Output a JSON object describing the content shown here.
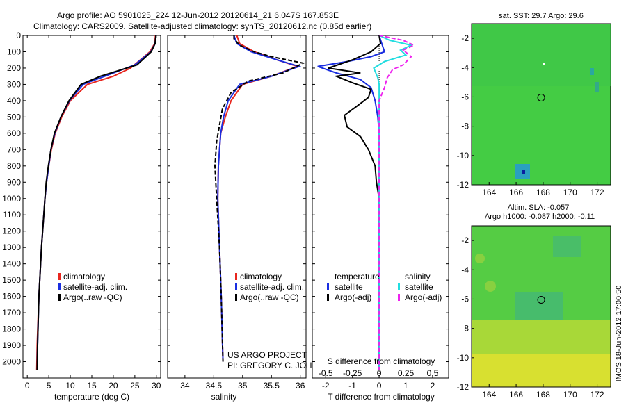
{
  "header": {
    "line1": "Argo profile: AO 5901025_224 12-Jun-2012 20120614_21 6.047S 167.853E",
    "line2": "Climatology: CARS2009. Satellite-adjusted climatology: synTS_20120612.nc (0.85d earlier)"
  },
  "colors": {
    "climatology": "#e8261e",
    "satellite": "#1a2ee0",
    "argo": "#000000",
    "salinity_sat": "#22dde0",
    "salinity_argo": "#ee22ee",
    "map_bg": "#44cc44"
  },
  "chart_data": [
    {
      "id": "temperature",
      "type": "line",
      "xlabel": "temperature (deg C)",
      "ylabel": "",
      "xlim": [
        -1,
        31
      ],
      "ylim": [
        2100,
        0
      ],
      "xticks": [
        0,
        5,
        10,
        15,
        20,
        25,
        30
      ],
      "yticks": [
        0,
        100,
        200,
        300,
        400,
        500,
        600,
        700,
        800,
        900,
        1000,
        1100,
        1200,
        1300,
        1400,
        1500,
        1600,
        1700,
        1800,
        1900,
        2000
      ],
      "legend": [
        "climatology",
        "satellite-adj. clim.",
        "Argo(..raw -QC)"
      ],
      "series": [
        {
          "name": "climatology",
          "points": [
            [
              29.8,
              0
            ],
            [
              29.6,
              50
            ],
            [
              28.5,
              100
            ],
            [
              24,
              200
            ],
            [
              20,
              250
            ],
            [
              14,
              300
            ],
            [
              10,
              400
            ],
            [
              8,
              500
            ],
            [
              6.5,
              600
            ],
            [
              5.6,
              700
            ],
            [
              5,
              800
            ],
            [
              4.5,
              900
            ],
            [
              4.1,
              1000
            ],
            [
              3.3,
              1300
            ],
            [
              2.7,
              1600
            ],
            [
              2.3,
              1900
            ],
            [
              2.2,
              2050
            ]
          ]
        },
        {
          "name": "satellite-adj. clim.",
          "points": [
            [
              29.9,
              0
            ],
            [
              29.7,
              50
            ],
            [
              28.7,
              100
            ],
            [
              25,
              180
            ],
            [
              18,
              250
            ],
            [
              13,
              300
            ],
            [
              9.8,
              400
            ],
            [
              7.8,
              500
            ],
            [
              6.4,
              600
            ],
            [
              5.5,
              700
            ],
            [
              5,
              800
            ],
            [
              4.5,
              900
            ],
            [
              4.1,
              1000
            ],
            [
              3.3,
              1300
            ],
            [
              2.7,
              1600
            ],
            [
              2.4,
              1900
            ],
            [
              2.3,
              2050
            ]
          ]
        },
        {
          "name": "Argo(..raw -QC)",
          "points": [
            [
              29.9,
              0
            ],
            [
              29.7,
              50
            ],
            [
              28.8,
              100
            ],
            [
              25.5,
              180
            ],
            [
              17,
              250
            ],
            [
              12.5,
              300
            ],
            [
              9.7,
              400
            ],
            [
              7.8,
              500
            ],
            [
              6.3,
              600
            ],
            [
              5.5,
              700
            ],
            [
              4.9,
              800
            ],
            [
              4.4,
              900
            ],
            [
              4.1,
              1000
            ],
            [
              3.3,
              1300
            ],
            [
              2.7,
              1600
            ],
            [
              2.4,
              1900
            ],
            [
              2.3,
              2050
            ]
          ]
        }
      ]
    },
    {
      "id": "salinity",
      "type": "line",
      "xlabel": "salinity",
      "ylabel": "",
      "xlim": [
        33.7,
        36.1
      ],
      "ylim": [
        2100,
        0
      ],
      "xticks": [
        34,
        34.5,
        35,
        35.5,
        36
      ],
      "xtick_labels": [
        "34",
        "34.5",
        "35",
        "35.5",
        "36"
      ],
      "legend": [
        "climatology",
        "satellite-adj. clim.",
        "Argo(..raw -QC)"
      ],
      "series": [
        {
          "name": "climatology",
          "points": [
            [
              34.9,
              0
            ],
            [
              34.95,
              50
            ],
            [
              35.2,
              100
            ],
            [
              35.6,
              150
            ],
            [
              35.95,
              190
            ],
            [
              35.5,
              250
            ],
            [
              35.0,
              300
            ],
            [
              34.8,
              400
            ],
            [
              34.7,
              500
            ],
            [
              34.62,
              600
            ],
            [
              34.6,
              700
            ],
            [
              34.58,
              800
            ],
            [
              34.57,
              1000
            ],
            [
              34.6,
              1300
            ],
            [
              34.63,
              1600
            ],
            [
              34.66,
              2000
            ]
          ]
        },
        {
          "name": "satellite-adj. clim.",
          "points": [
            [
              34.85,
              0
            ],
            [
              34.9,
              50
            ],
            [
              35.15,
              100
            ],
            [
              35.6,
              150
            ],
            [
              35.98,
              190
            ],
            [
              35.5,
              250
            ],
            [
              34.95,
              300
            ],
            [
              34.75,
              400
            ],
            [
              34.67,
              500
            ],
            [
              34.62,
              600
            ],
            [
              34.6,
              700
            ],
            [
              34.58,
              800
            ],
            [
              34.57,
              1000
            ],
            [
              34.6,
              1300
            ],
            [
              34.63,
              1600
            ],
            [
              34.66,
              2000
            ]
          ]
        },
        {
          "name": "Argo(..raw -QC)",
          "points": [
            [
              34.85,
              0
            ],
            [
              34.85,
              20
            ],
            [
              34.95,
              60
            ],
            [
              35.2,
              100
            ],
            [
              35.5,
              130
            ],
            [
              36.05,
              170
            ],
            [
              35.7,
              230
            ],
            [
              35.1,
              280
            ],
            [
              34.8,
              350
            ],
            [
              34.65,
              450
            ],
            [
              34.6,
              550
            ],
            [
              34.55,
              650
            ],
            [
              34.52,
              800
            ],
            [
              34.55,
              1000
            ],
            [
              34.6,
              1300
            ],
            [
              34.63,
              1600
            ],
            [
              34.66,
              2000
            ]
          ]
        }
      ]
    },
    {
      "id": "difference",
      "type": "line",
      "xlabel": "T difference from climatology",
      "xlabel_top": "S difference from climatology",
      "xlim": [
        -2.5,
        2.6
      ],
      "ylim": [
        2100,
        0
      ],
      "xticks": [
        -2,
        -1,
        0,
        1,
        2
      ],
      "top_ticks": [
        "-0.5",
        "-0.25",
        "0",
        "0.25",
        "0.5"
      ],
      "legend": [
        "temperature",
        "satellite",
        "Argo(-adj)",
        "salinity",
        "satellite",
        "Argo(-adj)"
      ],
      "series": [
        {
          "name": "T satellite",
          "points": [
            [
              0,
              0
            ],
            [
              0.1,
              50
            ],
            [
              0.2,
              100
            ],
            [
              -0.3,
              130
            ],
            [
              -1.2,
              160
            ],
            [
              -2.3,
              190
            ],
            [
              -1.6,
              230
            ],
            [
              -0.7,
              270
            ],
            [
              -0.3,
              320
            ],
            [
              -0.15,
              400
            ],
            [
              -0.05,
              500
            ],
            [
              0,
              600
            ],
            [
              0,
              800
            ],
            [
              0,
              1000
            ],
            [
              0,
              2050
            ]
          ]
        },
        {
          "name": "T Argo(-adj)",
          "points": [
            [
              0,
              0
            ],
            [
              0.05,
              50
            ],
            [
              -0.3,
              100
            ],
            [
              -1.0,
              150
            ],
            [
              -1.9,
              200
            ],
            [
              -0.7,
              230
            ],
            [
              -1.6,
              250
            ],
            [
              -1.0,
              290
            ],
            [
              -0.3,
              330
            ],
            [
              -0.4,
              380
            ],
            [
              -0.8,
              430
            ],
            [
              -1.3,
              490
            ],
            [
              -1.2,
              560
            ],
            [
              -0.7,
              620
            ],
            [
              -0.4,
              700
            ],
            [
              -0.15,
              800
            ],
            [
              -0.1,
              900
            ],
            [
              0,
              1000
            ],
            [
              0,
              2050
            ]
          ]
        },
        {
          "name": "S satellite",
          "points": [
            [
              0,
              0
            ],
            [
              0.4,
              30
            ],
            [
              1.2,
              60
            ],
            [
              0.8,
              90
            ],
            [
              1.0,
              120
            ],
            [
              0.2,
              160
            ],
            [
              -0.2,
              200
            ],
            [
              -0.05,
              260
            ],
            [
              0,
              300
            ],
            [
              0,
              2050
            ]
          ]
        },
        {
          "name": "S Argo(-adj)",
          "points": [
            [
              0,
              0
            ],
            [
              0.9,
              30
            ],
            [
              1.3,
              60
            ],
            [
              0.9,
              90
            ],
            [
              1.2,
              130
            ],
            [
              0.9,
              180
            ],
            [
              0.5,
              210
            ],
            [
              0.3,
              260
            ],
            [
              0.2,
              320
            ],
            [
              0,
              400
            ],
            [
              0,
              500
            ],
            [
              0,
              600
            ],
            [
              0,
              2050
            ]
          ]
        }
      ]
    },
    {
      "id": "sst-map",
      "type": "heatmap",
      "title": "sat. SST: 29.7 Argo: 29.6",
      "xlim": [
        162.7,
        173.0
      ],
      "ylim": [
        -12,
        -1
      ],
      "xticks": [
        164,
        166,
        168,
        170,
        172
      ],
      "yticks": [
        -2,
        -4,
        -6,
        -8,
        -10,
        -12
      ],
      "argo_marker": [
        167.853,
        -6.047
      ]
    },
    {
      "id": "sla-map",
      "type": "heatmap",
      "title_line1": "Altim. SLA: -0.057",
      "title_line2": "Argo h1000: -0.087 h2000: -0.11",
      "xlim": [
        162.7,
        173.0
      ],
      "ylim": [
        -12,
        -1
      ],
      "xticks": [
        164,
        166,
        168,
        170,
        172
      ],
      "yticks": [
        -2,
        -4,
        -6,
        -8,
        -10,
        -12
      ],
      "argo_marker": [
        167.853,
        -6.047
      ]
    }
  ],
  "annotations": {
    "project": "US ARGO PROJECT",
    "pi": "PI: GREGORY C. JOHNSON",
    "imos_stamp": "IMOS 18-Jun-2012 17:00:50"
  }
}
